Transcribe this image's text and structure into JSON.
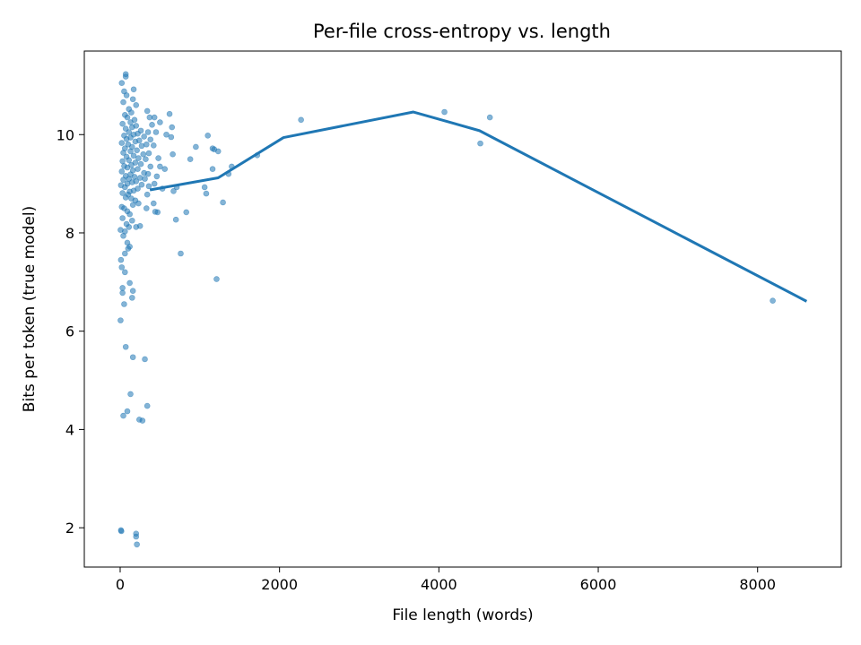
{
  "chart_data": {
    "type": "scatter",
    "title": "Per-file cross-entropy vs. length",
    "xlabel": "File length (words)",
    "ylabel": "Bits per token (true model)",
    "xlim": [
      -450,
      9050
    ],
    "ylim": [
      1.2,
      11.7
    ],
    "xticks": [
      0,
      2000,
      4000,
      6000,
      8000
    ],
    "xtick_labels": [
      "0",
      "2000",
      "4000",
      "6000",
      "8000"
    ],
    "yticks": [
      2,
      4,
      6,
      8,
      10
    ],
    "ytick_labels": [
      "2",
      "4",
      "6",
      "8",
      "10"
    ],
    "grid": false,
    "colors": {
      "points": "#1f77b4",
      "line": "#1f77b4"
    },
    "series": [
      {
        "kind": "scatter",
        "points": [
          [
            10,
            1.95
          ],
          [
            15,
            1.93
          ],
          [
            200,
            1.88
          ],
          [
            200,
            1.82
          ],
          [
            210,
            1.66
          ],
          [
            40,
            4.28
          ],
          [
            90,
            4.37
          ],
          [
            130,
            4.72
          ],
          [
            240,
            4.2
          ],
          [
            280,
            4.18
          ],
          [
            340,
            4.48
          ],
          [
            160,
            5.47
          ],
          [
            70,
            5.68
          ],
          [
            310,
            5.43
          ],
          [
            5,
            6.22
          ],
          [
            50,
            6.55
          ],
          [
            30,
            6.78
          ],
          [
            150,
            6.68
          ],
          [
            120,
            6.98
          ],
          [
            160,
            6.82
          ],
          [
            60,
            7.2
          ],
          [
            20,
            7.3
          ],
          [
            30,
            6.88
          ],
          [
            10,
            7.45
          ],
          [
            60,
            7.58
          ],
          [
            100,
            7.68
          ],
          [
            120,
            7.72
          ],
          [
            90,
            7.8
          ],
          [
            40,
            7.94
          ],
          [
            60,
            8.03
          ],
          [
            5,
            8.06
          ],
          [
            110,
            8.12
          ],
          [
            200,
            8.12
          ],
          [
            250,
            8.14
          ],
          [
            80,
            8.18
          ],
          [
            150,
            8.25
          ],
          [
            30,
            8.3
          ],
          [
            120,
            8.38
          ],
          [
            90,
            8.44
          ],
          [
            50,
            8.5
          ],
          [
            20,
            8.53
          ],
          [
            160,
            8.57
          ],
          [
            230,
            8.6
          ],
          [
            190,
            8.66
          ],
          [
            140,
            8.7
          ],
          [
            70,
            8.72
          ],
          [
            100,
            8.78
          ],
          [
            30,
            8.81
          ],
          [
            120,
            8.84
          ],
          [
            170,
            8.86
          ],
          [
            220,
            8.9
          ],
          [
            60,
            8.93
          ],
          [
            10,
            8.97
          ],
          [
            270,
            8.98
          ],
          [
            90,
            9.0
          ],
          [
            150,
            9.03
          ],
          [
            200,
            9.05
          ],
          [
            40,
            9.08
          ],
          [
            110,
            9.1
          ],
          [
            250,
            9.12
          ],
          [
            180,
            9.14
          ],
          [
            70,
            9.16
          ],
          [
            130,
            9.19
          ],
          [
            300,
            9.22
          ],
          [
            20,
            9.25
          ],
          [
            160,
            9.27
          ],
          [
            220,
            9.3
          ],
          [
            90,
            9.33
          ],
          [
            50,
            9.36
          ],
          [
            140,
            9.38
          ],
          [
            260,
            9.4
          ],
          [
            190,
            9.43
          ],
          [
            30,
            9.46
          ],
          [
            110,
            9.48
          ],
          [
            230,
            9.52
          ],
          [
            80,
            9.55
          ],
          [
            170,
            9.57
          ],
          [
            290,
            9.6
          ],
          [
            40,
            9.63
          ],
          [
            130,
            9.66
          ],
          [
            210,
            9.68
          ],
          [
            60,
            9.72
          ],
          [
            150,
            9.75
          ],
          [
            270,
            9.77
          ],
          [
            100,
            9.8
          ],
          [
            20,
            9.83
          ],
          [
            190,
            9.86
          ],
          [
            240,
            9.88
          ],
          [
            80,
            9.91
          ],
          [
            130,
            9.94
          ],
          [
            300,
            9.96
          ],
          [
            50,
            9.98
          ],
          [
            170,
            10.0
          ],
          [
            220,
            10.02
          ],
          [
            110,
            10.05
          ],
          [
            260,
            10.08
          ],
          [
            70,
            10.12
          ],
          [
            150,
            10.15
          ],
          [
            200,
            10.18
          ],
          [
            30,
            10.22
          ],
          [
            130,
            10.25
          ],
          [
            180,
            10.3
          ],
          [
            90,
            10.35
          ],
          [
            60,
            10.4
          ],
          [
            140,
            10.45
          ],
          [
            110,
            10.52
          ],
          [
            200,
            10.6
          ],
          [
            40,
            10.66
          ],
          [
            160,
            10.72
          ],
          [
            80,
            10.8
          ],
          [
            50,
            10.88
          ],
          [
            170,
            10.92
          ],
          [
            20,
            11.05
          ],
          [
            70,
            11.18
          ],
          [
            70,
            11.23
          ],
          [
            330,
            8.5
          ],
          [
            340,
            8.78
          ],
          [
            360,
            8.95
          ],
          [
            310,
            9.1
          ],
          [
            350,
            9.2
          ],
          [
            380,
            9.35
          ],
          [
            320,
            9.5
          ],
          [
            360,
            9.62
          ],
          [
            330,
            9.8
          ],
          [
            380,
            9.9
          ],
          [
            350,
            10.05
          ],
          [
            400,
            10.2
          ],
          [
            370,
            10.35
          ],
          [
            340,
            10.48
          ],
          [
            420,
            8.6
          ],
          [
            440,
            8.43
          ],
          [
            470,
            8.42
          ],
          [
            430,
            9.0
          ],
          [
            460,
            9.15
          ],
          [
            500,
            9.35
          ],
          [
            480,
            9.52
          ],
          [
            420,
            9.78
          ],
          [
            450,
            10.05
          ],
          [
            500,
            10.25
          ],
          [
            430,
            10.35
          ],
          [
            530,
            8.9
          ],
          [
            560,
            9.3
          ],
          [
            580,
            10.0
          ],
          [
            620,
            10.42
          ],
          [
            650,
            10.15
          ],
          [
            640,
            9.95
          ],
          [
            660,
            9.6
          ],
          [
            670,
            8.85
          ],
          [
            700,
            8.27
          ],
          [
            710,
            8.93
          ],
          [
            760,
            7.58
          ],
          [
            830,
            8.42
          ],
          [
            880,
            9.5
          ],
          [
            950,
            9.75
          ],
          [
            1060,
            8.93
          ],
          [
            1080,
            8.8
          ],
          [
            1100,
            9.98
          ],
          [
            1160,
            9.3
          ],
          [
            1160,
            9.72
          ],
          [
            1180,
            9.7
          ],
          [
            1210,
            7.06
          ],
          [
            1230,
            9.66
          ],
          [
            1290,
            8.62
          ],
          [
            1360,
            9.2
          ],
          [
            1400,
            9.35
          ],
          [
            1720,
            9.58
          ],
          [
            2270,
            10.3
          ],
          [
            4070,
            10.46
          ],
          [
            4520,
            9.82
          ],
          [
            4640,
            10.35
          ],
          [
            8190,
            6.62
          ]
        ]
      },
      {
        "kind": "line",
        "x": [
          390,
          1230,
          2050,
          3680,
          4510,
          8600
        ],
        "y": [
          8.88,
          9.12,
          9.94,
          10.46,
          10.08,
          6.62
        ]
      }
    ]
  }
}
